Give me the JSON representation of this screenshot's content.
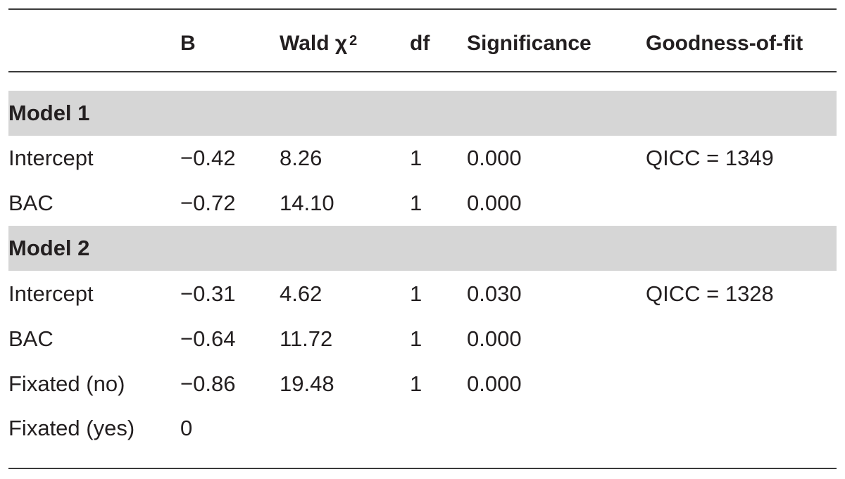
{
  "table": {
    "columns": [
      "",
      "B",
      "Wald χ",
      "df",
      "Significance",
      "Goodness-of-fit"
    ],
    "wald_superscript": "2",
    "groups": [
      {
        "label": "Model 1",
        "rows": [
          [
            "Intercept",
            "−0.42",
            "8.26",
            "1",
            "0.000",
            "QICC = 1349"
          ],
          [
            "BAC",
            "−0.72",
            "14.10",
            "1",
            "0.000",
            ""
          ]
        ]
      },
      {
        "label": "Model 2",
        "rows": [
          [
            "Intercept",
            "−0.31",
            "4.62",
            "1",
            "0.030",
            "QICC = 1328"
          ],
          [
            "BAC",
            "−0.64",
            "11.72",
            "1",
            "0.000",
            ""
          ],
          [
            "Fixated (no)",
            "−0.86",
            "19.48",
            "1",
            "0.000",
            ""
          ],
          [
            "Fixated (yes)",
            "0",
            "",
            "",
            "",
            ""
          ]
        ]
      }
    ]
  }
}
